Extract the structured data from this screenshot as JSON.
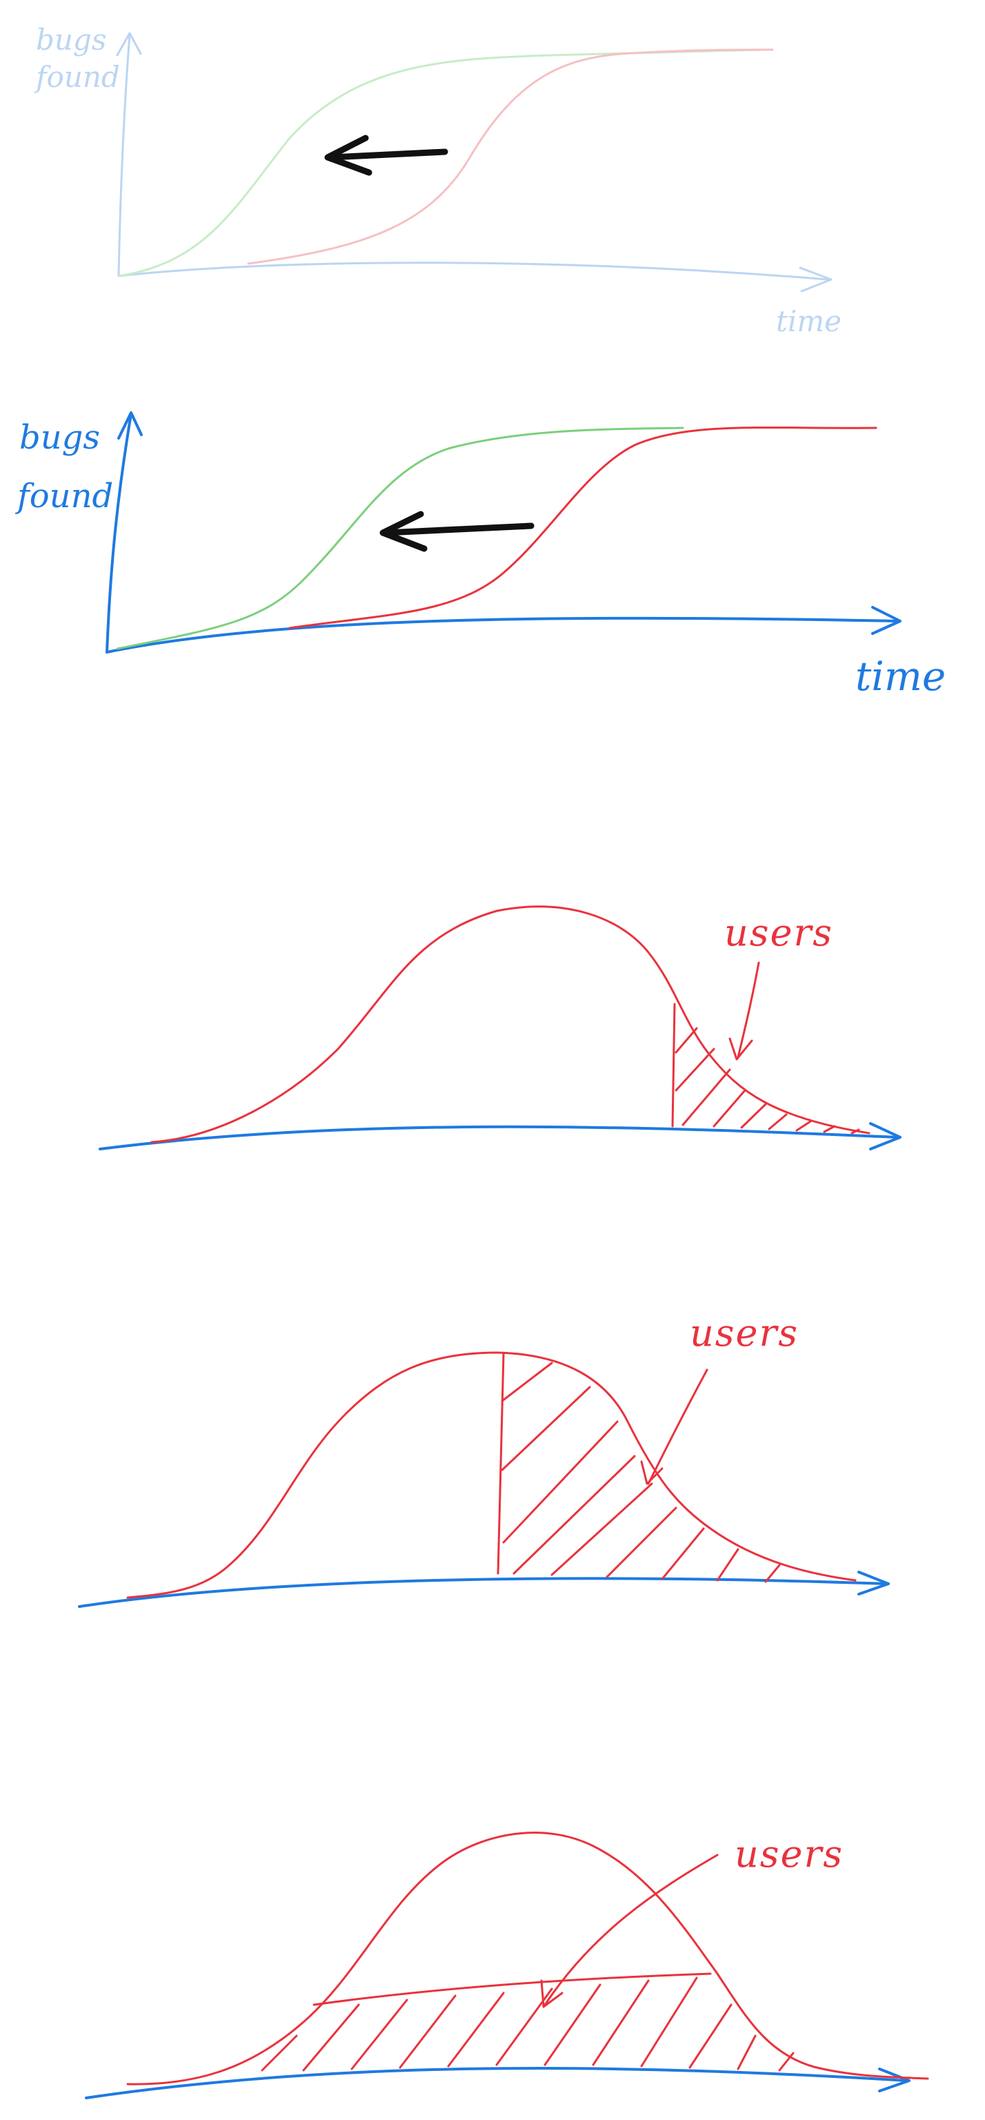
{
  "colors": {
    "axis": "#1f7ae0",
    "axis_faded": "#bcd5f2",
    "green_curve": "#7ccf7c",
    "green_curve_faded": "#c8ecc8",
    "red_curve": "#e8333d",
    "red_curve_faded": "#f6c0c3",
    "arrow": "#111111"
  },
  "sketch1": {
    "ylabel_line1": "bugs",
    "ylabel_line2": "found",
    "xlabel": "time"
  },
  "sketch2": {
    "ylabel_line1": "bugs",
    "ylabel_line2": "found",
    "xlabel": "time"
  },
  "sketch3": {
    "annotation": "users"
  },
  "sketch4": {
    "annotation": "users"
  },
  "sketch5": {
    "annotation": "users"
  }
}
